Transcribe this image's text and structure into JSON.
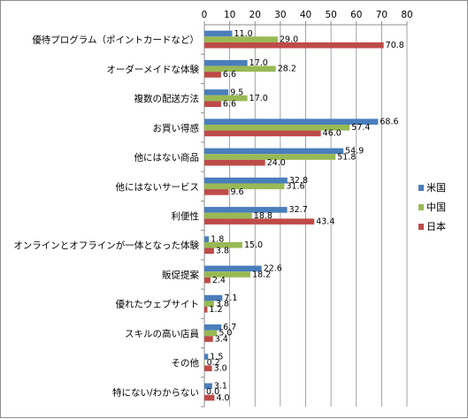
{
  "chart_data": {
    "type": "bar",
    "orientation": "horizontal",
    "categories": [
      "優待プログラム（ポイントカードなど）",
      "オーダーメイドな体験",
      "複数の配送方法",
      "お買い得感",
      "他にはない商品",
      "他にはないサービス",
      "利便性",
      "オンラインとオフラインが一体となった体験",
      "販促提案",
      "優れたウェブサイト",
      "スキルの高い店員",
      "その他",
      "特にない/わからない"
    ],
    "series": [
      {
        "name": "米国",
        "color": "#4a7ebb",
        "values": [
          11.0,
          17.0,
          9.5,
          68.6,
          54.9,
          32.8,
          32.7,
          1.8,
          22.6,
          7.1,
          6.7,
          1.5,
          3.1
        ]
      },
      {
        "name": "中国",
        "color": "#98b954",
        "values": [
          29.0,
          28.2,
          17.0,
          57.4,
          51.8,
          31.6,
          18.8,
          15.0,
          18.2,
          3.8,
          5.0,
          0.2,
          0.0
        ]
      },
      {
        "name": "日本",
        "color": "#be4b48",
        "values": [
          70.8,
          6.6,
          6.6,
          46.0,
          24.0,
          9.6,
          43.4,
          3.8,
          2.4,
          1.2,
          3.4,
          3.0,
          4.0
        ]
      }
    ],
    "labels": {
      "values": [
        [
          "11.0",
          "17.0",
          "9.5",
          "68.6",
          "54.9",
          "32.8",
          "32.7",
          "1.8",
          "22.6",
          "7.1",
          "6.7",
          "1.5",
          "3.1"
        ],
        [
          "29.0",
          "28.2",
          "17.0",
          "57.4",
          "51.8",
          "31.6",
          "18.8",
          "15.0",
          "18.2",
          "3.8",
          "5.0",
          "0.2",
          "0.0"
        ],
        [
          "70.8",
          "6.6",
          "6.6",
          "46.0",
          "24.0",
          "9.6",
          "43.4",
          "3.8",
          "2.4",
          "1.2",
          "3.4",
          "3.0",
          "4.0"
        ]
      ]
    },
    "xticks": [
      "0",
      "10",
      "20",
      "30",
      "40",
      "50",
      "60",
      "70",
      "80"
    ],
    "xlim": [
      0,
      80
    ],
    "grid": true,
    "axis_position": "top",
    "legend_position": "right",
    "title": "",
    "xlabel": "",
    "ylabel": ""
  }
}
